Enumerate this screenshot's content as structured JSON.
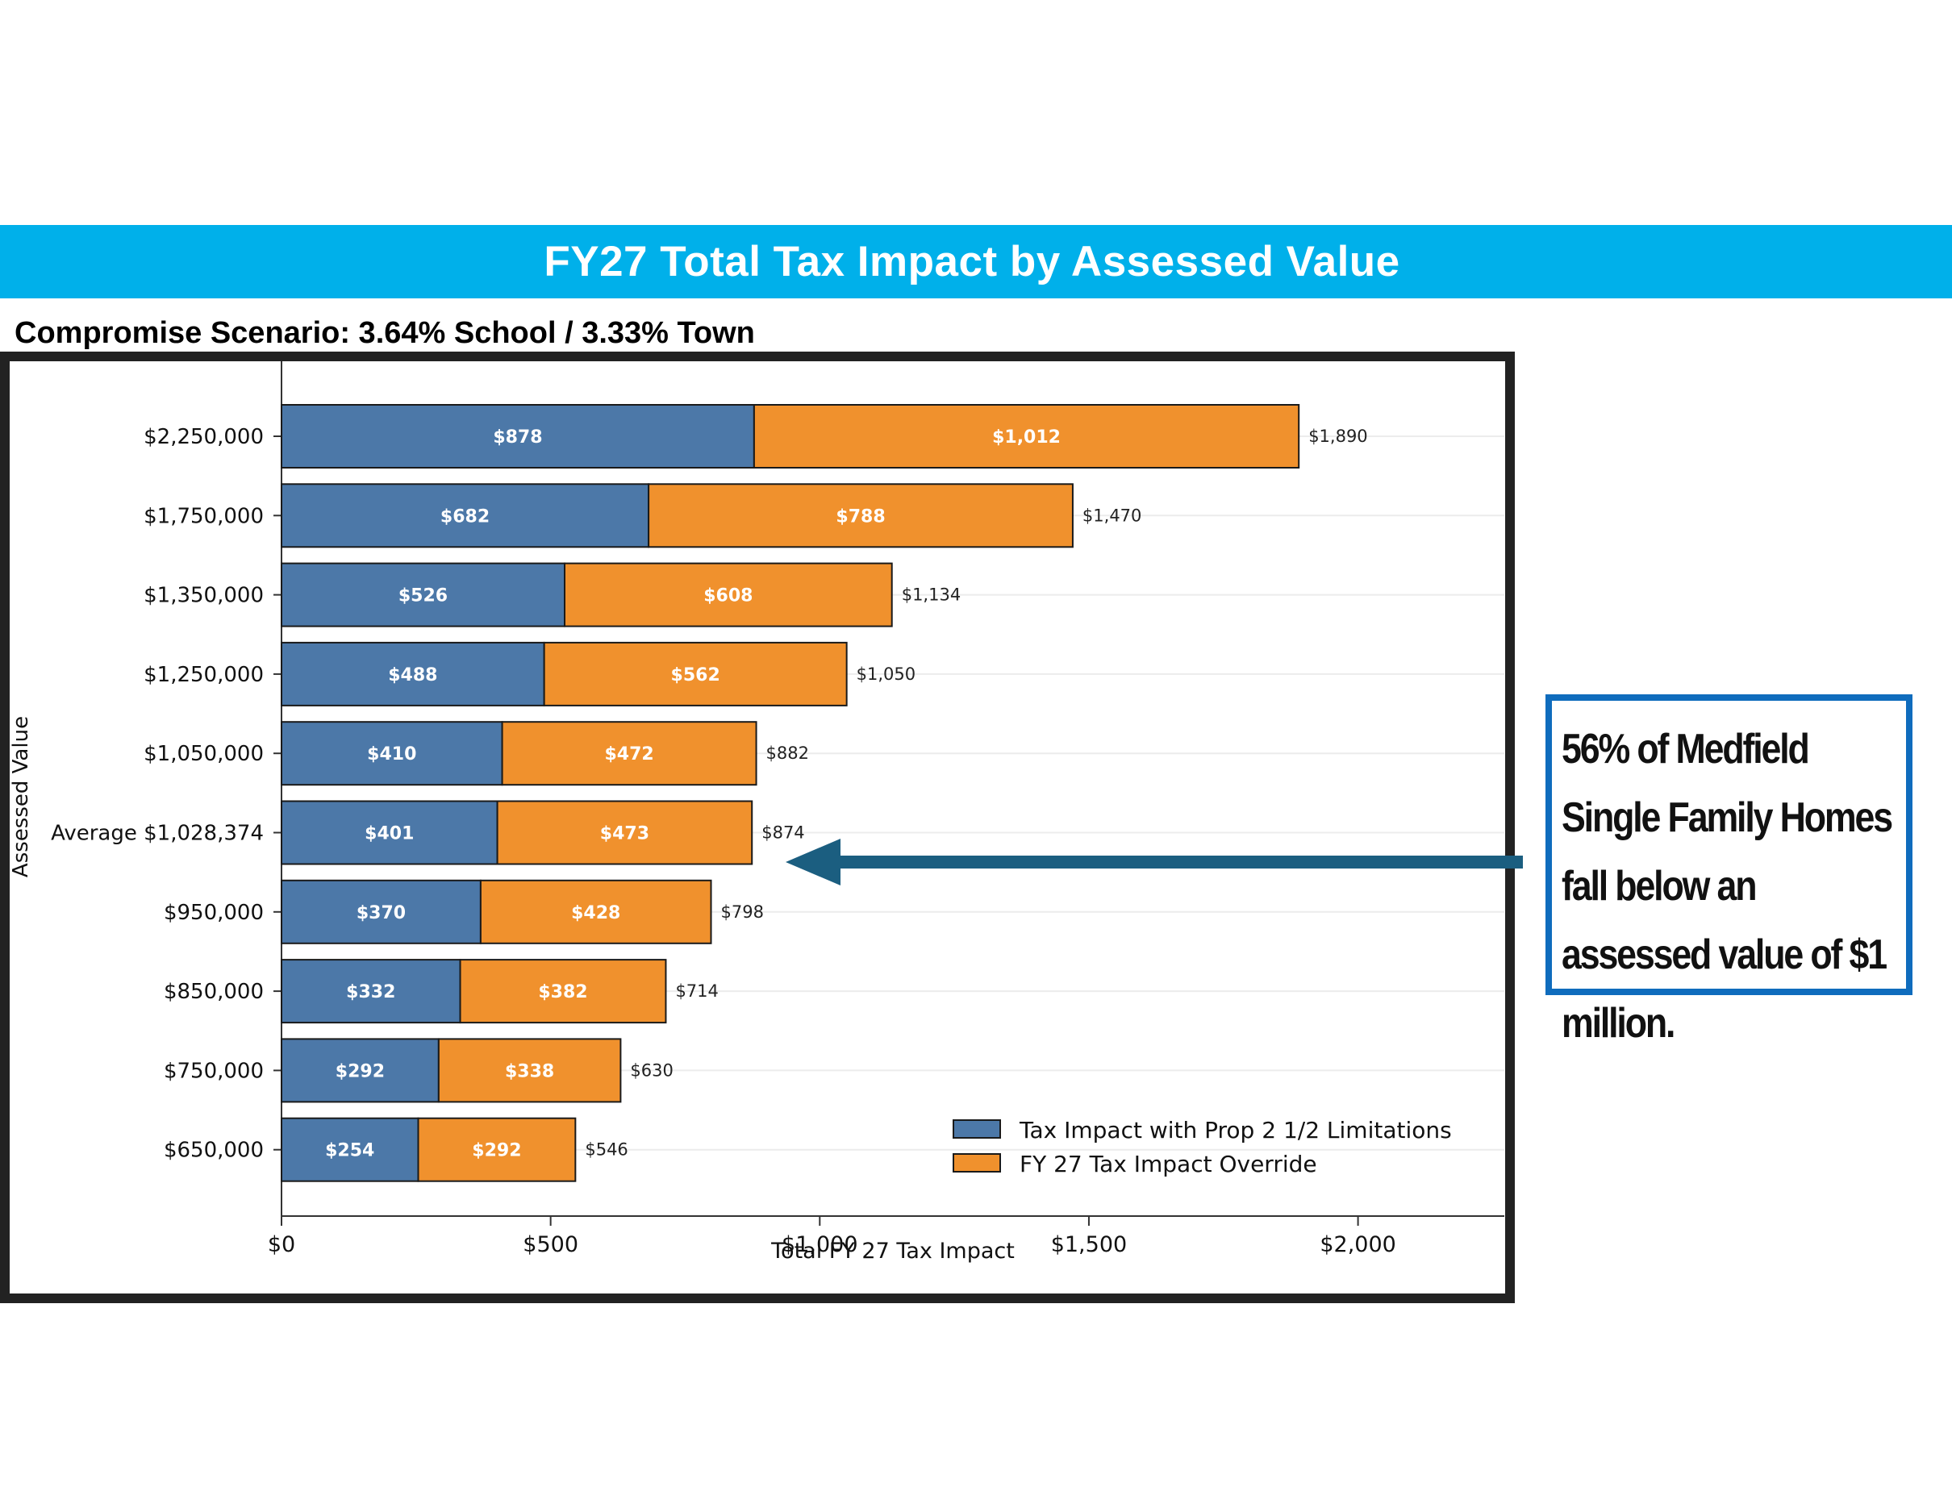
{
  "slide": {
    "title": "FY27 Total Tax Impact by Assessed Value",
    "subtitle": "Compromise Scenario: 3.64% School / 3.33% Town",
    "callout": "56% of Medfield Single Family Homes fall below an assessed value of $1 million."
  },
  "colors": {
    "banner": "#00b0ea",
    "series1": "#4c78a8",
    "series2": "#f0912d",
    "arrow": "#1b5e80",
    "callout_border": "#0f6cbd"
  },
  "chart_data": {
    "type": "bar",
    "orientation": "horizontal",
    "stacked": true,
    "title": "",
    "xlabel": "Total FY 27 Tax Impact",
    "ylabel": "Assessed Value",
    "xlim": [
      0,
      2250
    ],
    "x_ticks": [
      0,
      500,
      1000,
      1500,
      2000
    ],
    "x_tick_labels": [
      "$0",
      "$500",
      "$1,000",
      "$1,500",
      "$2,000"
    ],
    "grid": "horizontal",
    "legend_position": "lower-right",
    "categories": [
      "$2,250,000",
      "$1,750,000",
      "$1,350,000",
      "$1,250,000",
      "$1,050,000",
      "Average $1,028,374",
      "$950,000",
      "$850,000",
      "$750,000",
      "$650,000"
    ],
    "series": [
      {
        "name": "Tax Impact with Prop 2 1/2 Limitations",
        "values": [
          878,
          682,
          526,
          488,
          410,
          401,
          370,
          332,
          292,
          254
        ],
        "labels": [
          "$878",
          "$682",
          "$526",
          "$488",
          "$410",
          "$401",
          "$370",
          "$332",
          "$292",
          "$254"
        ]
      },
      {
        "name": "FY 27 Tax Impact Override",
        "values": [
          1012,
          788,
          608,
          562,
          472,
          473,
          428,
          382,
          338,
          292
        ],
        "labels": [
          "$1,012",
          "$788",
          "$608",
          "$562",
          "$472",
          "$473",
          "$428",
          "$382",
          "$338",
          "$292"
        ]
      }
    ],
    "totals": [
      1890,
      1470,
      1134,
      1050,
      882,
      874,
      798,
      714,
      630,
      546
    ],
    "total_labels": [
      "$1,890",
      "$1,470",
      "$1,134",
      "$1,050",
      "$882",
      "$874",
      "$798",
      "$714",
      "$630",
      "$546"
    ],
    "annotation": "arrow pointing to the Average $1,028,374 row"
  }
}
